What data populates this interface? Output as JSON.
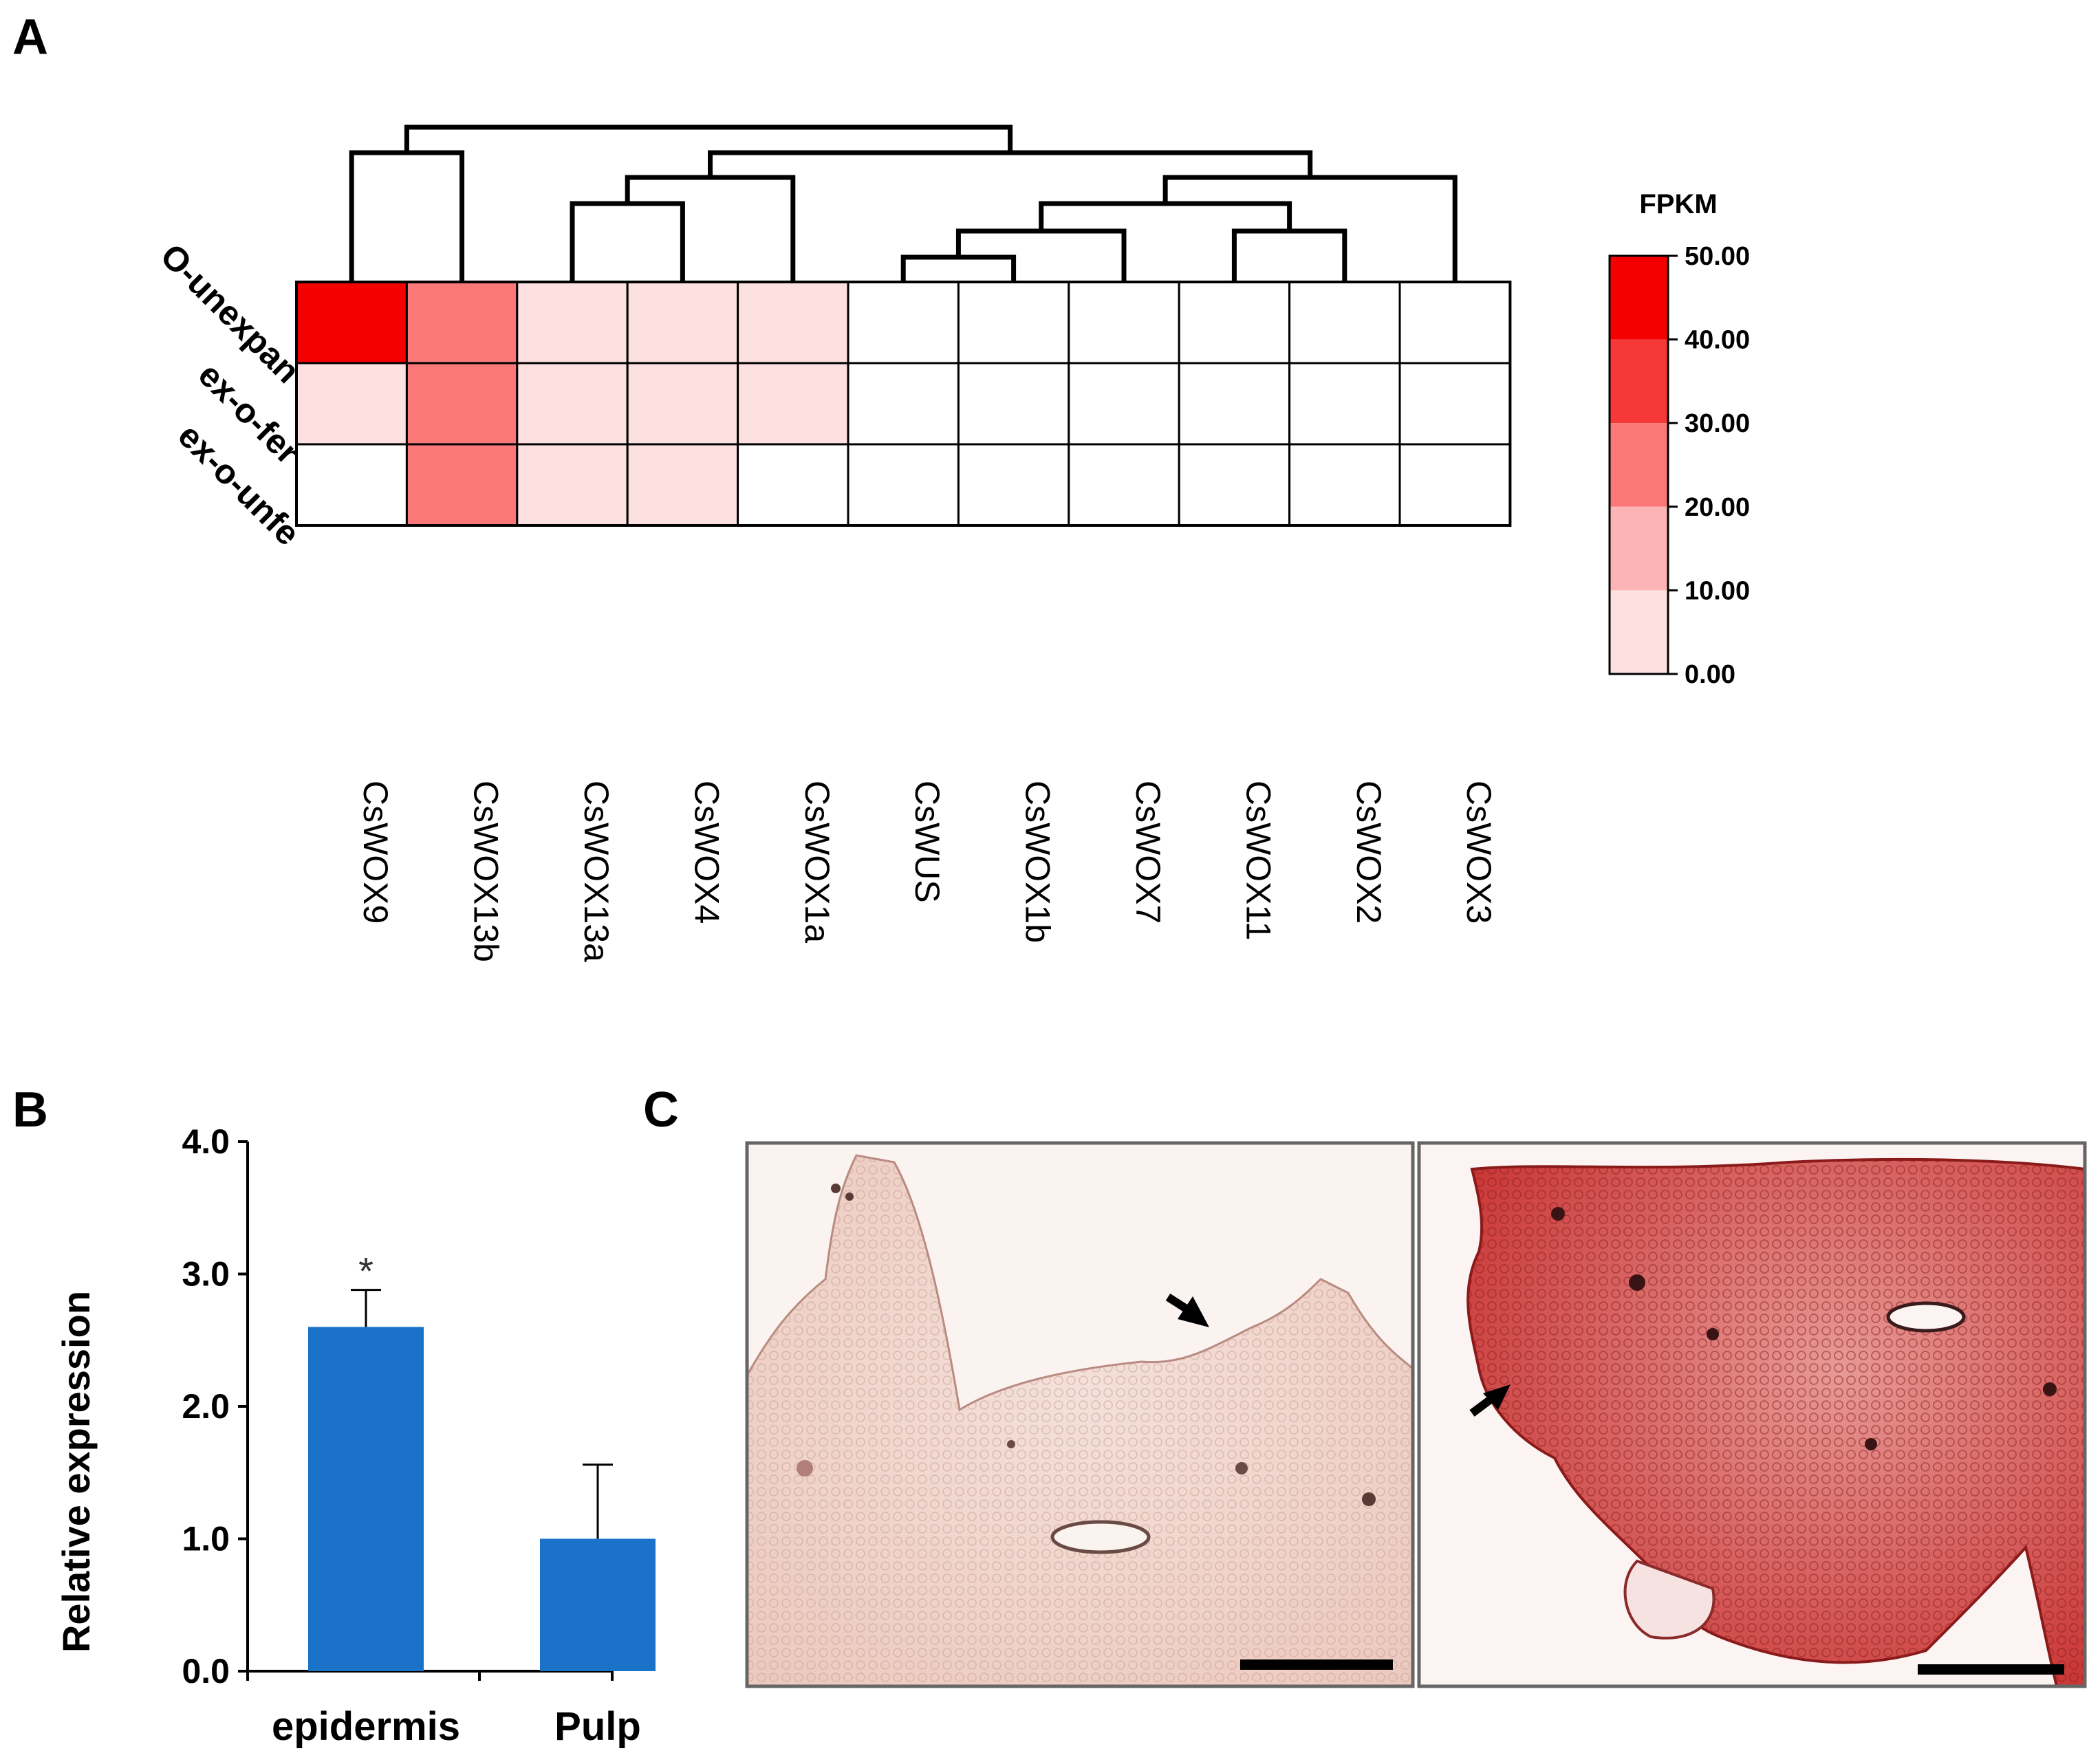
{
  "panel_labels": {
    "a": "A",
    "b": "B",
    "c": "C"
  },
  "colors": {
    "bar": "#1a73c9",
    "heat_scale": [
      "#ffffff",
      "#fde0e0",
      "#fcb4b4",
      "#fa7878",
      "#f73838",
      "#f40000"
    ],
    "micro_left": "#f2d2c8",
    "micro_right": "#d33838"
  },
  "chart_data": [
    {
      "type": "heatmap",
      "title": "",
      "rows": [
        "O-unexpan",
        "ex-o-fer",
        "ex-o-unfe"
      ],
      "columns": [
        "CsWOX9",
        "CsWOX13b",
        "CsWOX13a",
        "CsWOX4",
        "CsWOX1a",
        "CsWUS",
        "CsWOX1b",
        "CsWOX7",
        "CsWOX11",
        "CsWOX2",
        "CsWOX3"
      ],
      "values": [
        [
          50,
          25,
          5,
          5,
          5,
          0,
          0,
          0,
          0,
          0,
          0
        ],
        [
          5,
          25,
          5,
          5,
          5,
          0,
          0,
          0,
          0,
          0,
          0
        ],
        [
          0,
          25,
          5,
          5,
          0,
          0,
          0,
          0,
          0,
          0,
          0
        ]
      ],
      "dendrogram": "column clustering",
      "legend": {
        "title": "FPKM",
        "ticks": [
          "50.00",
          "40.00",
          "30.00",
          "20.00",
          "10.00",
          "0.00"
        ],
        "range": [
          0,
          50
        ],
        "placement": "right"
      }
    },
    {
      "type": "bar",
      "categories": [
        "epidermis",
        "Pulp"
      ],
      "values": [
        2.6,
        1.0
      ],
      "errors": [
        0.28,
        0.56
      ],
      "annotations": [
        "*",
        ""
      ],
      "ylabel": "Relative expression",
      "xlabel": "",
      "ylim": [
        0,
        4.0
      ],
      "yticks": [
        "0.0",
        "1.0",
        "2.0",
        "3.0",
        "4.0"
      ]
    }
  ]
}
